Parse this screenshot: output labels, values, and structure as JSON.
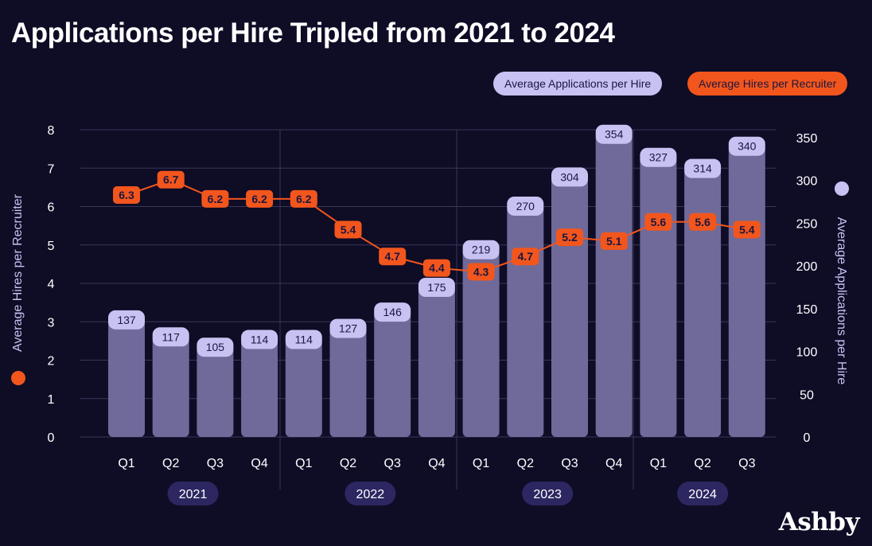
{
  "title": "Applications per Hire Tripled from 2021 to 2024",
  "brand": "Ashby",
  "colors": {
    "background": "#0f0c26",
    "bar": "#6f6a9a",
    "bar_label_bg": "#c7c2f2",
    "line": "#f2561d",
    "grid": "#3a3658",
    "year_pill": "#2c2761"
  },
  "chart_data": {
    "type": "bar",
    "categories": [
      "Q1",
      "Q2",
      "Q3",
      "Q4",
      "Q1",
      "Q2",
      "Q3",
      "Q4",
      "Q1",
      "Q2",
      "Q3",
      "Q4",
      "Q1",
      "Q2",
      "Q3"
    ],
    "years": [
      "2021",
      "2022",
      "2023",
      "2024"
    ],
    "year_groups": [
      [
        0,
        3
      ],
      [
        4,
        7
      ],
      [
        8,
        11
      ],
      [
        12,
        14
      ]
    ],
    "series": [
      {
        "name": "Average Applications per Hire",
        "type": "bar",
        "axis": "right",
        "values": [
          137,
          117,
          105,
          114,
          114,
          127,
          146,
          175,
          219,
          270,
          304,
          354,
          327,
          314,
          340
        ]
      },
      {
        "name": "Average Hires per Recruiter",
        "type": "line",
        "axis": "left",
        "values": [
          6.3,
          6.7,
          6.2,
          6.2,
          6.2,
          5.4,
          4.7,
          4.4,
          4.3,
          4.7,
          5.2,
          5.1,
          5.6,
          5.6,
          5.4
        ]
      }
    ],
    "ylabel_left": "Average Hires per Recruiter",
    "ylabel_right": "Average Applications per Hire",
    "ylim_left": [
      0,
      8
    ],
    "ylim_right": [
      0,
      360
    ],
    "yticks_left": [
      "0",
      "1",
      "2",
      "3",
      "4",
      "5",
      "6",
      "7",
      "8"
    ],
    "yticks_right": [
      "0",
      "50",
      "100",
      "150",
      "200",
      "250",
      "300",
      "350"
    ],
    "grid": true,
    "legend_position": "top-right"
  }
}
